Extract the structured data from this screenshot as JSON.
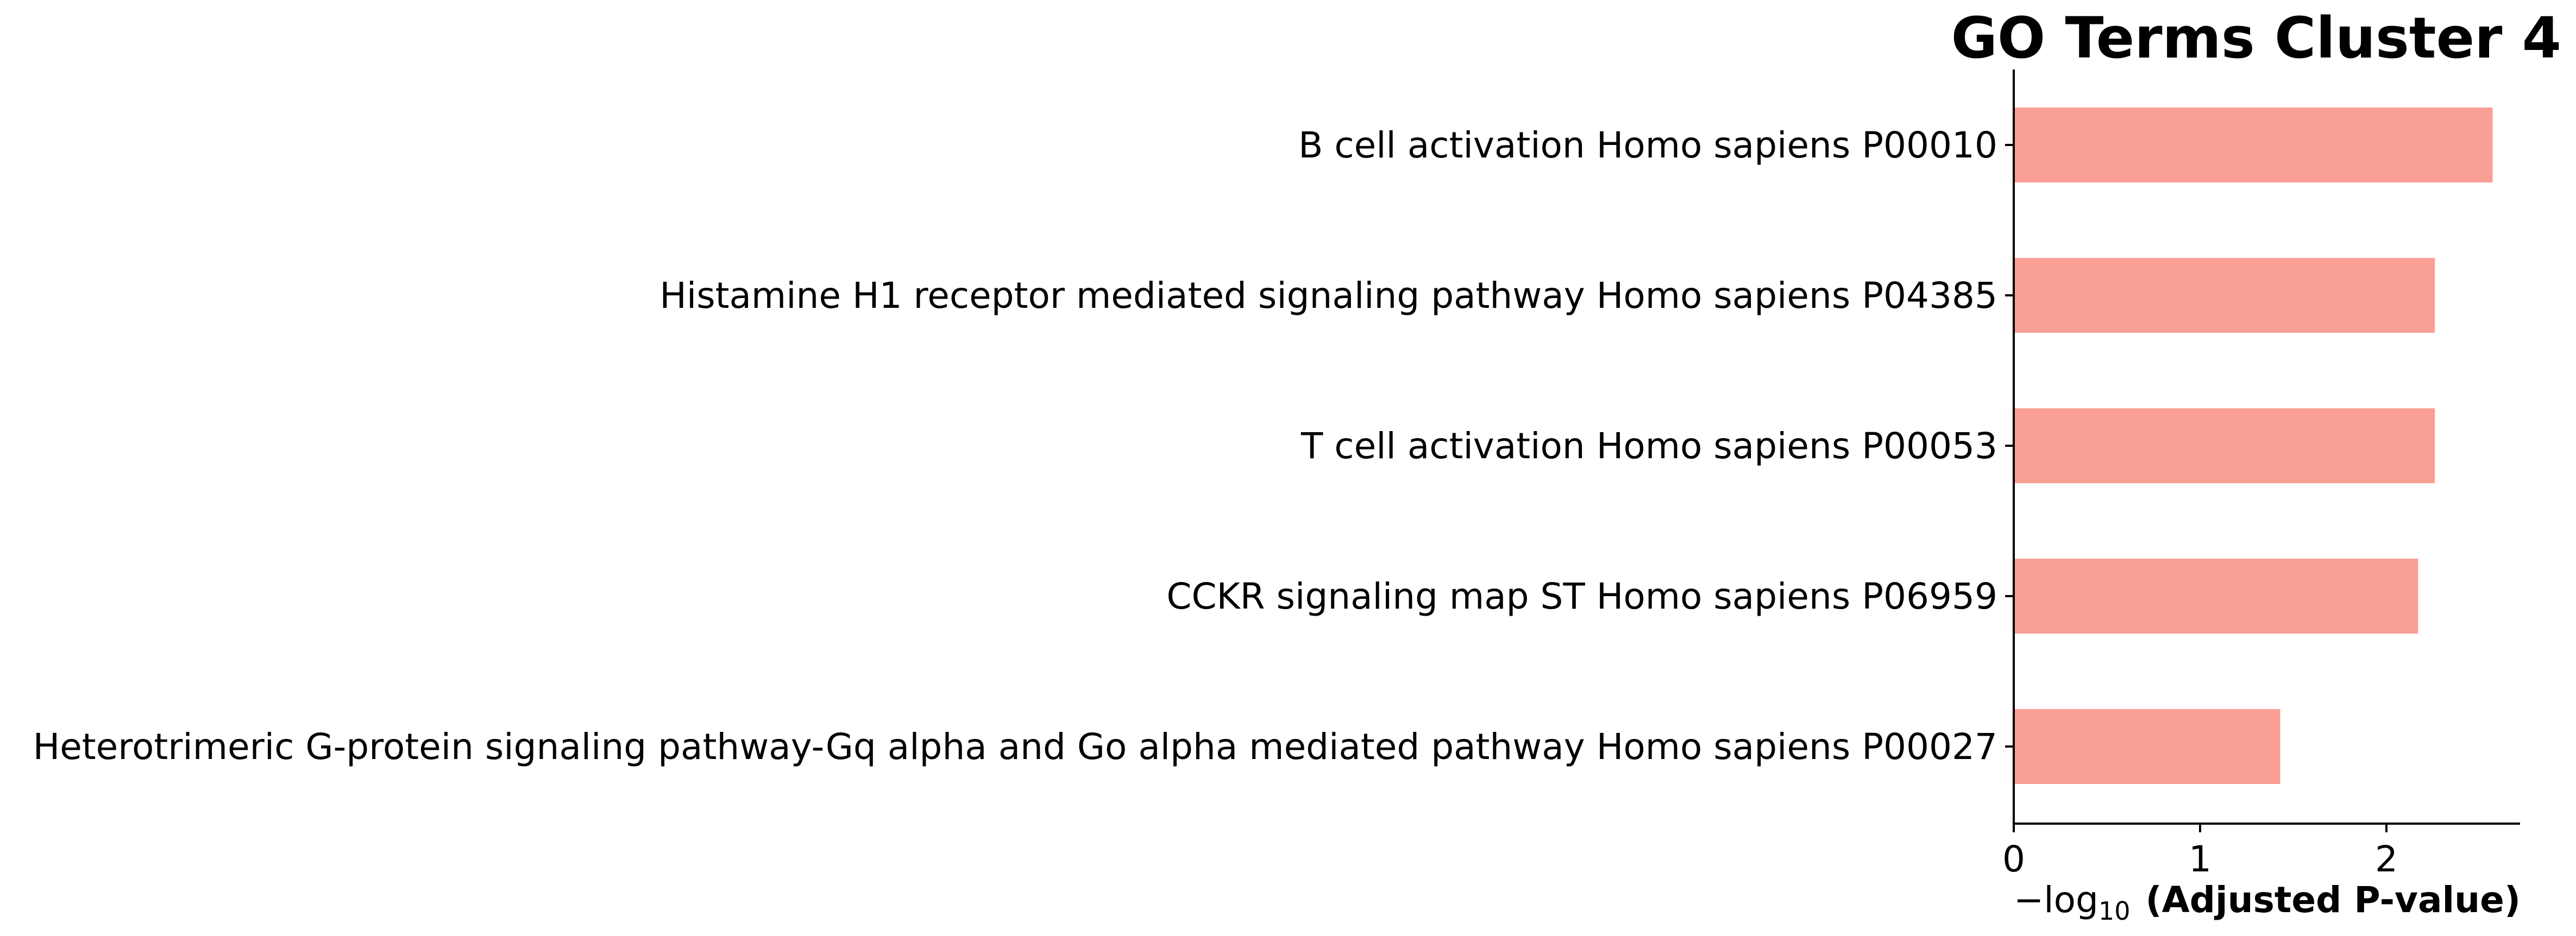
{
  "chart_data": {
    "type": "bar",
    "orientation": "horizontal",
    "title": "GO Terms Cluster 4",
    "categories": [
      "B cell activation Homo sapiens P00010",
      "Histamine H1 receptor mediated signaling pathway Homo sapiens P04385",
      "T cell activation Homo sapiens P00053",
      "CCKR signaling map ST Homo sapiens P06959",
      "Heterotrimeric G-protein signaling pathway-Gq alpha and Go alpha mediated pathway Homo sapiens P00027"
    ],
    "values": [
      2.57,
      2.26,
      2.26,
      2.17,
      1.43
    ],
    "xlabel": {
      "prefix": "−log",
      "subscript": "10",
      "bold_text": "(Adjusted P-value)"
    },
    "ylabel": "",
    "xlim": [
      0,
      2.7
    ],
    "xticks": [
      0,
      1,
      2
    ],
    "xtick_labels": [
      "0",
      "1",
      "2"
    ],
    "bar_color": "#fa9f95",
    "grid": false,
    "legend": "none"
  }
}
